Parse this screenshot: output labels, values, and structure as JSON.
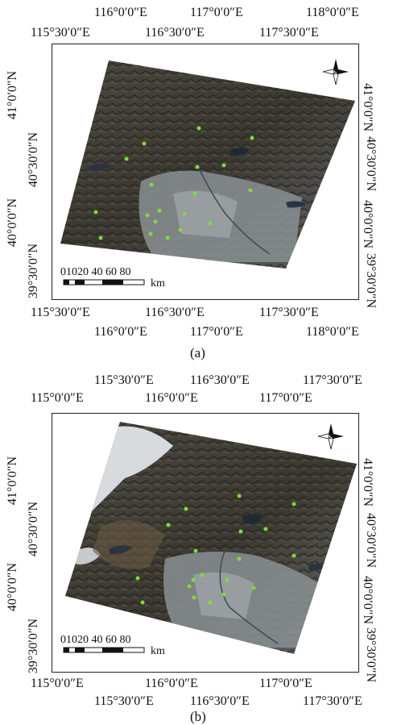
{
  "panels": [
    {
      "id": "a",
      "caption": "(a)",
      "top_lon": [
        "116°0′0″E",
        "117°0′0″E",
        "118°0′0″E"
      ],
      "top_lon2": [
        "115°30′0″E",
        "116°30′0″E",
        "117°30′0″E"
      ],
      "bottom_lon": [
        "115°30′0″E",
        "116°30′0″E",
        "117°30′0″E"
      ],
      "bottom_lon2": [
        "116°0′0″E",
        "117°0′0″E",
        "118°0′0″E"
      ],
      "left_lat": [
        "41°0′0″N",
        "40°0′0″N"
      ],
      "left_lat2": [
        "40°30′0″N",
        "39°30′0″N"
      ],
      "right_lat": [
        "41°0′0″N",
        "40°30′0″N",
        "40°0′0″N",
        "39°30′0″N"
      ],
      "scale_numbers": "01020 40 60 80",
      "scale_unit": "km"
    },
    {
      "id": "b",
      "caption": "(b)",
      "top_lon": [
        "115°30′0″E",
        "116°30′0″E",
        "117°30′0″E"
      ],
      "top_lon2": [
        "115°0′0″E",
        "116°0′0″E",
        "117°0′0″E"
      ],
      "bottom_lon": [
        "115°0′0″E",
        "116°0′0″E",
        "117°0′0″E"
      ],
      "bottom_lon2": [
        "115°30′0″E",
        "116°30′0″E",
        "117°30′0″E"
      ],
      "left_lat": [
        "41°0′0″N",
        "40°30′0″N",
        "40°0′0″N",
        "39°30′0″N"
      ],
      "right_lat": [
        "41°0′0″N",
        "40°30′0″N",
        "40°0′0″N",
        "39°30′0″N"
      ],
      "scale_numbers": "01020 40 60 80",
      "scale_unit": "km"
    }
  ],
  "colors": {
    "terrain_dark": "#3d3b33",
    "terrain_mid": "#5a574c",
    "urban": "#8a8f93",
    "water": "#2a3440",
    "snow": "#e8ecef",
    "site_marker": "#7ddc3e"
  },
  "icons": [
    "north-arrow-icon"
  ]
}
